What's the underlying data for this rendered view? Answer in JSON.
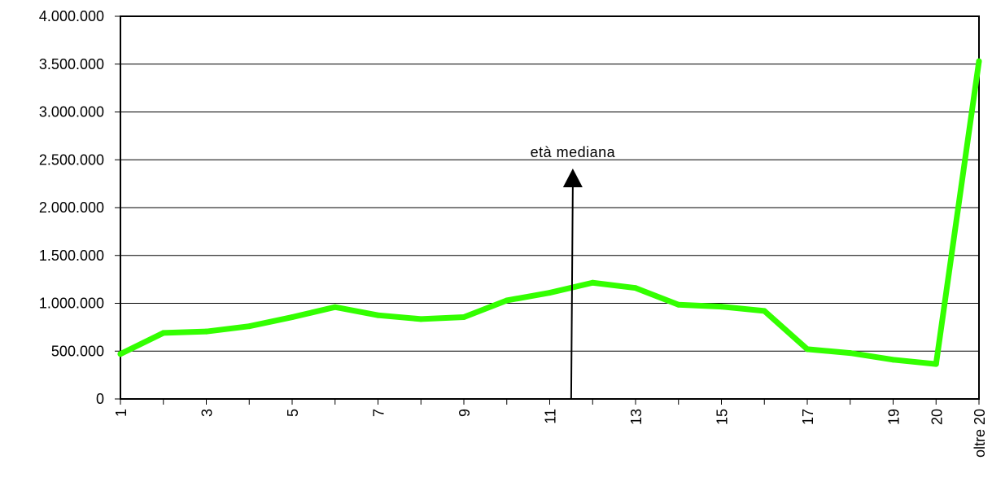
{
  "chart_data": {
    "type": "line",
    "x": [
      "1",
      "2",
      "3",
      "4",
      "5",
      "6",
      "7",
      "8",
      "9",
      "10",
      "11",
      "12",
      "13",
      "14",
      "15",
      "16",
      "17",
      "18",
      "19",
      "20",
      "oltre 20"
    ],
    "x_tick_labels": [
      "1",
      "3",
      "5",
      "7",
      "9",
      "11",
      "13",
      "15",
      "17",
      "19",
      "20",
      "oltre 20"
    ],
    "series": [
      {
        "values": [
          470000,
          690000,
          705000,
          760000,
          855000,
          960000,
          875000,
          835000,
          855000,
          1030000,
          1110000,
          1215000,
          1160000,
          985000,
          965000,
          920000,
          520000,
          480000,
          410000,
          365000,
          3530000
        ]
      }
    ],
    "ylim": [
      0,
      4000000
    ],
    "y_ticks": [
      "0",
      "500.000",
      "1.000.000",
      "1.500.000",
      "2.000.000",
      "2.500.000",
      "3.000.000",
      "3.500.000",
      "4.000.000"
    ],
    "y_tick_values": [
      0,
      500000,
      1000000,
      1500000,
      2000000,
      2500000,
      3000000,
      3500000,
      4000000
    ],
    "grid": "horizontal",
    "line_color": "#33ff00",
    "annotations": [
      {
        "text": "età mediana",
        "x": 11.5
      }
    ]
  }
}
